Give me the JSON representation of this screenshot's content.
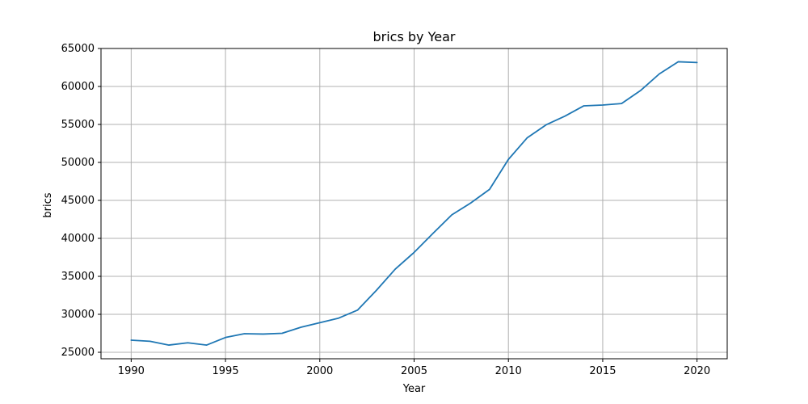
{
  "chart_data": {
    "type": "line",
    "title": "brics by Year",
    "xlabel": "Year",
    "ylabel": "brics",
    "xlim": [
      1988.4,
      2021.6
    ],
    "ylim": [
      24150,
      65000
    ],
    "grid": true,
    "x_ticks": [
      1990,
      1995,
      2000,
      2005,
      2010,
      2015,
      2020
    ],
    "y_ticks": [
      25000,
      30000,
      35000,
      40000,
      45000,
      50000,
      55000,
      60000,
      65000
    ],
    "series": [
      {
        "color": "#1f77b4",
        "x": [
          1990,
          1991,
          1992,
          1993,
          1994,
          1995,
          1996,
          1997,
          1998,
          1999,
          2000,
          2001,
          2002,
          2003,
          2004,
          2005,
          2006,
          2007,
          2008,
          2009,
          2010,
          2011,
          2012,
          2013,
          2014,
          2015,
          2016,
          2017,
          2018,
          2019,
          2020
        ],
        "values": [
          26600,
          26450,
          25950,
          26250,
          25950,
          26950,
          27450,
          27400,
          27500,
          28300,
          28900,
          29500,
          30550,
          33150,
          35950,
          38150,
          40650,
          43100,
          44650,
          46450,
          50400,
          53250,
          54950,
          56100,
          57450,
          57550,
          57750,
          59450,
          61650,
          63250,
          63150
        ]
      }
    ]
  }
}
